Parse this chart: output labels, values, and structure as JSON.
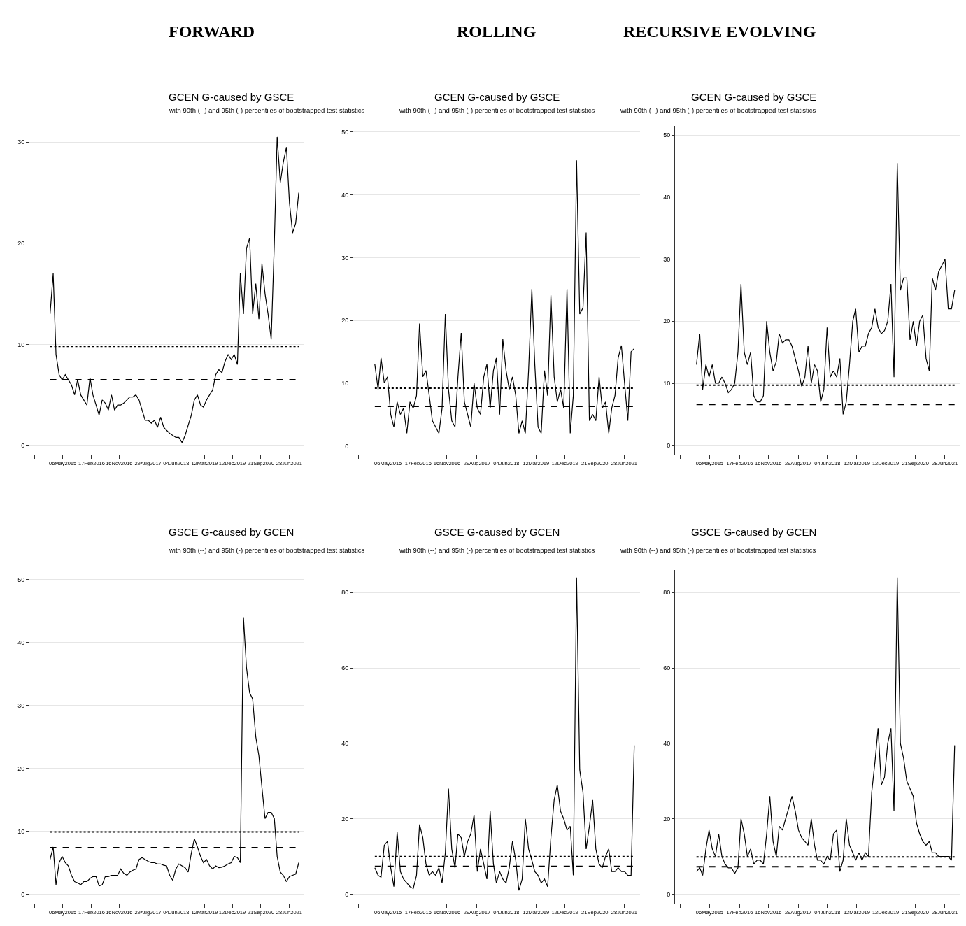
{
  "chart_data": [
    {
      "type": "line",
      "title": "GCEN G-caused by GSCE",
      "subtitle": "with 90th (--) and 95th (-) percentiles of bootstrapped test statistics",
      "annotations": [
        "FORWARD"
      ],
      "color": "#000000",
      "grid": "y",
      "x": [
        "2015-01",
        "2015-02",
        "2015-03",
        "2015-04",
        "2015-05",
        "2015-06",
        "2015-07",
        "2015-08",
        "2015-09",
        "2015-10",
        "2015-11",
        "2015-12",
        "2016-01",
        "2016-02",
        "2016-03",
        "2016-04",
        "2016-05",
        "2016-06",
        "2016-07",
        "2016-08",
        "2016-09",
        "2016-10",
        "2016-11",
        "2016-12",
        "2017-01",
        "2017-02",
        "2017-03",
        "2017-04",
        "2017-05",
        "2017-06",
        "2017-07",
        "2017-08",
        "2017-09",
        "2017-10",
        "2017-11",
        "2017-12",
        "2018-01",
        "2018-02",
        "2018-03",
        "2018-04",
        "2018-05",
        "2018-06",
        "2018-07",
        "2018-08",
        "2018-09",
        "2018-10",
        "2018-11",
        "2018-12",
        "2019-01",
        "2019-02",
        "2019-03",
        "2019-04",
        "2019-05",
        "2019-06",
        "2019-07",
        "2019-08",
        "2019-09",
        "2019-10",
        "2019-11",
        "2019-12",
        "2020-01",
        "2020-02",
        "2020-03",
        "2020-04",
        "2020-05",
        "2020-06",
        "2020-07",
        "2020-08",
        "2020-09",
        "2020-10",
        "2020-11",
        "2020-12",
        "2021-01",
        "2021-02",
        "2021-03",
        "2021-04",
        "2021-05",
        "2021-06",
        "2021-07",
        "2021-08",
        "2021-09",
        "2021-10"
      ],
      "values": [
        13,
        17,
        9,
        7,
        6.5,
        7,
        6.5,
        6,
        5,
        6.5,
        5,
        4.5,
        4,
        6.7,
        5,
        4,
        3,
        4.5,
        4.2,
        3.5,
        5,
        3.5,
        4,
        4,
        4.2,
        4.5,
        4.8,
        4.8,
        5,
        4.5,
        3.5,
        2.5,
        2.5,
        2.2,
        2.5,
        1.8,
        2.8,
        1.8,
        1.5,
        1.2,
        1,
        0.8,
        0.8,
        0.3,
        1,
        2,
        3,
        4.5,
        5,
        4,
        3.8,
        4.5,
        5,
        5.5,
        7,
        7.5,
        7.2,
        8.3,
        9,
        8.5,
        9,
        8,
        17,
        13,
        19.5,
        20.5,
        13,
        16,
        12.5,
        18,
        15,
        13,
        10.5,
        20,
        30.5,
        26,
        28,
        29.5,
        24,
        21,
        22,
        25
      ],
      "xlim": [
        "2014-06-10",
        "2021-11-25"
      ],
      "xticks": [
        {
          "value": "2014-07-29",
          "label": null
        },
        {
          "value": "2015-05-06",
          "label": "06May2015"
        },
        {
          "value": "2016-02-17",
          "label": "17Feb2016"
        },
        {
          "value": "2016-11-16",
          "label": "16Nov2016"
        },
        {
          "value": "2017-08-29",
          "label": "29Aug2017"
        },
        {
          "value": "2018-06-04",
          "label": "04Jun2018"
        },
        {
          "value": "2019-03-12",
          "label": "12Mar2019"
        },
        {
          "value": "2019-12-12",
          "label": "12Dec2019"
        },
        {
          "value": "2020-09-21",
          "label": "21Sep2020"
        },
        {
          "value": "2021-06-28",
          "label": "28Jun2021"
        }
      ],
      "ylim": [
        -0.9,
        31.6
      ],
      "yticks": [
        0,
        10,
        20,
        30
      ],
      "ref_lines": [
        {
          "axis": "y",
          "value": 9.8,
          "line_style": "dotted",
          "color": "#000000"
        },
        {
          "axis": "y",
          "value": 6.5,
          "line_style": "dashed",
          "color": "#000000"
        }
      ]
    },
    {
      "type": "line",
      "title": "GCEN G-caused by GSCE",
      "subtitle": "with 90th (--) and 95th (-) percentiles of bootstrapped test statistics",
      "annotations": [
        "ROLLING"
      ],
      "color": "#000000",
      "grid": "y",
      "x": [
        "2015-01",
        "2015-02",
        "2015-03",
        "2015-04",
        "2015-05",
        "2015-06",
        "2015-07",
        "2015-08",
        "2015-09",
        "2015-10",
        "2015-11",
        "2015-12",
        "2016-01",
        "2016-02",
        "2016-03",
        "2016-04",
        "2016-05",
        "2016-06",
        "2016-07",
        "2016-08",
        "2016-09",
        "2016-10",
        "2016-11",
        "2016-12",
        "2017-01",
        "2017-02",
        "2017-03",
        "2017-04",
        "2017-05",
        "2017-06",
        "2017-07",
        "2017-08",
        "2017-09",
        "2017-10",
        "2017-11",
        "2017-12",
        "2018-01",
        "2018-02",
        "2018-03",
        "2018-04",
        "2018-05",
        "2018-06",
        "2018-07",
        "2018-08",
        "2018-09",
        "2018-10",
        "2018-11",
        "2018-12",
        "2019-01",
        "2019-02",
        "2019-03",
        "2019-04",
        "2019-05",
        "2019-06",
        "2019-07",
        "2019-08",
        "2019-09",
        "2019-10",
        "2019-11",
        "2019-12",
        "2020-01",
        "2020-02",
        "2020-03",
        "2020-04",
        "2020-05",
        "2020-06",
        "2020-07",
        "2020-08",
        "2020-09",
        "2020-10",
        "2020-11",
        "2020-12",
        "2021-01",
        "2021-02",
        "2021-03",
        "2021-04",
        "2021-05",
        "2021-06",
        "2021-07",
        "2021-08",
        "2021-09",
        "2021-10"
      ],
      "values": [
        13,
        9,
        14,
        10,
        11,
        5,
        3,
        7,
        5,
        6,
        2,
        7,
        6,
        8,
        19.5,
        11,
        12,
        8,
        4,
        3,
        2,
        6,
        21,
        9,
        4,
        3,
        11,
        18,
        7,
        5,
        3,
        10,
        6,
        5,
        11,
        13,
        6,
        12,
        14,
        5,
        17,
        12,
        9,
        11,
        8,
        2,
        4,
        2,
        12,
        25,
        13,
        3,
        2,
        12,
        8,
        24,
        11,
        7,
        9,
        6,
        25,
        2,
        8,
        45.5,
        21,
        22,
        34,
        4,
        5,
        4,
        11,
        6,
        7,
        2,
        6,
        8,
        14,
        16,
        10,
        4,
        15,
        15.5
      ],
      "xlim": [
        "2014-06-10",
        "2021-11-25"
      ],
      "xticks": [
        {
          "value": "2014-07-29",
          "label": null
        },
        {
          "value": "2015-05-06",
          "label": "06May2015"
        },
        {
          "value": "2016-02-17",
          "label": "17Feb2016"
        },
        {
          "value": "2016-11-16",
          "label": "16Nov2016"
        },
        {
          "value": "2017-08-29",
          "label": "29Aug2017"
        },
        {
          "value": "2018-06-04",
          "label": "04Jun2018"
        },
        {
          "value": "2019-03-12",
          "label": "12Mar2019"
        },
        {
          "value": "2019-12-12",
          "label": "12Dec2019"
        },
        {
          "value": "2020-09-21",
          "label": "21Sep2020"
        },
        {
          "value": "2021-06-28",
          "label": "28Jun2021"
        }
      ],
      "ylim": [
        -1.4,
        51
      ],
      "yticks": [
        0,
        10,
        20,
        30,
        40,
        50
      ],
      "ref_lines": [
        {
          "axis": "y",
          "value": 9.2,
          "line_style": "dotted",
          "color": "#000000"
        },
        {
          "axis": "y",
          "value": 6.3,
          "line_style": "dashed",
          "color": "#000000"
        }
      ]
    },
    {
      "type": "line",
      "title": "GCEN G-caused by GSCE",
      "subtitle": "with 90th (--) and 95th (-) percentiles of bootstrapped test statistics",
      "annotations": [
        "RECURSIVE EVOLVING"
      ],
      "color": "#000000",
      "grid": "y",
      "x": [
        "2015-01",
        "2015-02",
        "2015-03",
        "2015-04",
        "2015-05",
        "2015-06",
        "2015-07",
        "2015-08",
        "2015-09",
        "2015-10",
        "2015-11",
        "2015-12",
        "2016-01",
        "2016-02",
        "2016-03",
        "2016-04",
        "2016-05",
        "2016-06",
        "2016-07",
        "2016-08",
        "2016-09",
        "2016-10",
        "2016-11",
        "2016-12",
        "2017-01",
        "2017-02",
        "2017-03",
        "2017-04",
        "2017-05",
        "2017-06",
        "2017-07",
        "2017-08",
        "2017-09",
        "2017-10",
        "2017-11",
        "2017-12",
        "2018-01",
        "2018-02",
        "2018-03",
        "2018-04",
        "2018-05",
        "2018-06",
        "2018-07",
        "2018-08",
        "2018-09",
        "2018-10",
        "2018-11",
        "2018-12",
        "2019-01",
        "2019-02",
        "2019-03",
        "2019-04",
        "2019-05",
        "2019-06",
        "2019-07",
        "2019-08",
        "2019-09",
        "2019-10",
        "2019-11",
        "2019-12",
        "2020-01",
        "2020-02",
        "2020-03",
        "2020-04",
        "2020-05",
        "2020-06",
        "2020-07",
        "2020-08",
        "2020-09",
        "2020-10",
        "2020-11",
        "2020-12",
        "2021-01",
        "2021-02",
        "2021-03",
        "2021-04",
        "2021-05",
        "2021-06",
        "2021-07",
        "2021-08",
        "2021-09",
        "2021-10"
      ],
      "values": [
        13,
        18,
        9,
        13,
        11,
        13,
        10,
        10,
        11,
        10,
        8.5,
        9,
        10,
        15,
        26,
        15,
        13,
        15,
        8,
        7,
        7,
        8,
        20,
        15,
        12,
        13.5,
        18,
        16.5,
        17,
        17,
        16,
        14,
        12,
        9.5,
        11,
        16,
        10,
        13,
        12,
        7,
        9,
        19,
        11,
        12,
        11,
        14,
        5,
        7,
        13,
        20,
        22,
        15,
        16,
        16,
        18,
        19,
        22,
        19,
        18,
        18.5,
        20,
        26,
        11,
        45.5,
        25,
        27,
        27,
        17,
        20,
        16,
        20,
        21,
        14,
        12,
        27,
        25,
        28,
        29,
        30,
        22,
        22,
        25
      ],
      "xlim": [
        "2014-06-10",
        "2021-11-25"
      ],
      "xticks": [
        {
          "value": "2014-07-29",
          "label": null
        },
        {
          "value": "2015-05-06",
          "label": "06May2015"
        },
        {
          "value": "2016-02-17",
          "label": "17Feb2016"
        },
        {
          "value": "2016-11-16",
          "label": "16Nov2016"
        },
        {
          "value": "2017-08-29",
          "label": "29Aug2017"
        },
        {
          "value": "2018-06-04",
          "label": "04Jun2018"
        },
        {
          "value": "2019-03-12",
          "label": "12Mar2019"
        },
        {
          "value": "2019-12-12",
          "label": "12Dec2019"
        },
        {
          "value": "2020-09-21",
          "label": "21Sep2020"
        },
        {
          "value": "2021-06-28",
          "label": "28Jun2021"
        }
      ],
      "ylim": [
        -1.5,
        51.5
      ],
      "yticks": [
        0,
        10,
        20,
        30,
        40,
        50
      ],
      "ref_lines": [
        {
          "axis": "y",
          "value": 9.7,
          "line_style": "dotted",
          "color": "#000000"
        },
        {
          "axis": "y",
          "value": 6.6,
          "line_style": "dashed",
          "color": "#000000"
        }
      ]
    },
    {
      "type": "line",
      "title": "GSCE G-caused by GCEN",
      "subtitle": "with 90th (--) and 95th (-) percentiles of bootstrapped test statistics",
      "color": "#000000",
      "grid": "y",
      "x": [
        "2015-01",
        "2015-02",
        "2015-03",
        "2015-04",
        "2015-05",
        "2015-06",
        "2015-07",
        "2015-08",
        "2015-09",
        "2015-10",
        "2015-11",
        "2015-12",
        "2016-01",
        "2016-02",
        "2016-03",
        "2016-04",
        "2016-05",
        "2016-06",
        "2016-07",
        "2016-08",
        "2016-09",
        "2016-10",
        "2016-11",
        "2016-12",
        "2017-01",
        "2017-02",
        "2017-03",
        "2017-04",
        "2017-05",
        "2017-06",
        "2017-07",
        "2017-08",
        "2017-09",
        "2017-10",
        "2017-11",
        "2017-12",
        "2018-01",
        "2018-02",
        "2018-03",
        "2018-04",
        "2018-05",
        "2018-06",
        "2018-07",
        "2018-08",
        "2018-09",
        "2018-10",
        "2018-11",
        "2018-12",
        "2019-01",
        "2019-02",
        "2019-03",
        "2019-04",
        "2019-05",
        "2019-06",
        "2019-07",
        "2019-08",
        "2019-09",
        "2019-10",
        "2019-11",
        "2019-12",
        "2020-01",
        "2020-02",
        "2020-03",
        "2020-04",
        "2020-05",
        "2020-06",
        "2020-07",
        "2020-08",
        "2020-09",
        "2020-10",
        "2020-11",
        "2020-12",
        "2021-01",
        "2021-02",
        "2021-03",
        "2021-04",
        "2021-05",
        "2021-06",
        "2021-07",
        "2021-08",
        "2021-09",
        "2021-10"
      ],
      "values": [
        5.5,
        7.5,
        1.5,
        5,
        6,
        5,
        4.5,
        3,
        2,
        1.8,
        1.5,
        2,
        2,
        2.5,
        2.8,
        2.8,
        1.3,
        1.5,
        2.8,
        2.8,
        3,
        3,
        3,
        4,
        3.3,
        3,
        3.5,
        3.8,
        4,
        5.5,
        5.8,
        5.5,
        5.2,
        5,
        5,
        4.8,
        4.8,
        4.6,
        4.5,
        3,
        2.2,
        4,
        4.8,
        4.5,
        4.2,
        3.5,
        6.5,
        8.8,
        7.5,
        6,
        5,
        5.5,
        4.5,
        4,
        4.5,
        4.2,
        4.3,
        4.5,
        4.8,
        5,
        6,
        5.8,
        5,
        44,
        36,
        32,
        31,
        25,
        22,
        17,
        12,
        13,
        13,
        12,
        6,
        3.5,
        3,
        2,
        2.8,
        3,
        3.2,
        5
      ],
      "xlim": [
        "2014-06-10",
        "2021-11-25"
      ],
      "xticks": [
        {
          "value": "2014-07-29",
          "label": null
        },
        {
          "value": "2015-05-06",
          "label": "06May2015"
        },
        {
          "value": "2016-02-17",
          "label": "17Feb2016"
        },
        {
          "value": "2016-11-16",
          "label": "16Nov2016"
        },
        {
          "value": "2017-08-29",
          "label": "29Aug2017"
        },
        {
          "value": "2018-06-04",
          "label": "04Jun2018"
        },
        {
          "value": "2019-03-12",
          "label": "12Mar2019"
        },
        {
          "value": "2019-12-12",
          "label": "12Dec2019"
        },
        {
          "value": "2020-09-21",
          "label": "21Sep2020"
        },
        {
          "value": "2021-06-28",
          "label": "28Jun2021"
        }
      ],
      "ylim": [
        -1.5,
        51.5
      ],
      "yticks": [
        0,
        10,
        20,
        30,
        40,
        50
      ],
      "ref_lines": [
        {
          "axis": "y",
          "value": 9.9,
          "line_style": "dotted",
          "color": "#000000"
        },
        {
          "axis": "y",
          "value": 7.4,
          "line_style": "dashed",
          "color": "#000000"
        }
      ]
    },
    {
      "type": "line",
      "title": "GSCE G-caused by GCEN",
      "subtitle": "with 90th (--) and 95th (-) percentiles of bootstrapped test statistics",
      "color": "#000000",
      "grid": "y",
      "x": [
        "2015-01",
        "2015-02",
        "2015-03",
        "2015-04",
        "2015-05",
        "2015-06",
        "2015-07",
        "2015-08",
        "2015-09",
        "2015-10",
        "2015-11",
        "2015-12",
        "2016-01",
        "2016-02",
        "2016-03",
        "2016-04",
        "2016-05",
        "2016-06",
        "2016-07",
        "2016-08",
        "2016-09",
        "2016-10",
        "2016-11",
        "2016-12",
        "2017-01",
        "2017-02",
        "2017-03",
        "2017-04",
        "2017-05",
        "2017-06",
        "2017-07",
        "2017-08",
        "2017-09",
        "2017-10",
        "2017-11",
        "2017-12",
        "2018-01",
        "2018-02",
        "2018-03",
        "2018-04",
        "2018-05",
        "2018-06",
        "2018-07",
        "2018-08",
        "2018-09",
        "2018-10",
        "2018-11",
        "2018-12",
        "2019-01",
        "2019-02",
        "2019-03",
        "2019-04",
        "2019-05",
        "2019-06",
        "2019-07",
        "2019-08",
        "2019-09",
        "2019-10",
        "2019-11",
        "2019-12",
        "2020-01",
        "2020-02",
        "2020-03",
        "2020-04",
        "2020-05",
        "2020-06",
        "2020-07",
        "2020-08",
        "2020-09",
        "2020-10",
        "2020-11",
        "2020-12",
        "2021-01",
        "2021-02",
        "2021-03",
        "2021-04",
        "2021-05",
        "2021-06",
        "2021-07",
        "2021-08",
        "2021-09",
        "2021-10"
      ],
      "values": [
        7,
        5,
        4.5,
        13,
        14,
        7,
        2,
        16.5,
        6,
        4,
        3,
        2,
        1.5,
        5,
        18.5,
        15,
        8,
        5,
        6,
        5,
        7,
        3,
        11,
        28,
        12,
        7,
        16,
        15,
        10,
        14,
        16,
        21,
        6,
        12,
        8,
        4,
        22,
        8,
        3,
        6,
        4,
        3,
        7,
        14,
        9,
        1,
        4,
        20,
        12,
        9,
        6,
        5,
        3,
        4,
        2,
        15,
        25,
        29,
        22,
        20,
        17,
        18,
        5,
        84,
        33,
        27,
        12,
        18,
        25,
        12,
        8,
        7,
        10,
        12,
        6,
        6,
        7,
        6,
        6,
        5,
        5,
        39.5
      ],
      "xlim": [
        "2014-06-10",
        "2021-11-25"
      ],
      "xticks": [
        {
          "value": "2014-07-29",
          "label": null
        },
        {
          "value": "2015-05-06",
          "label": "06May2015"
        },
        {
          "value": "2016-02-17",
          "label": "17Feb2016"
        },
        {
          "value": "2016-11-16",
          "label": "16Nov2016"
        },
        {
          "value": "2017-08-29",
          "label": "29Aug2017"
        },
        {
          "value": "2018-06-04",
          "label": "04Jun2018"
        },
        {
          "value": "2019-03-12",
          "label": "12Mar2019"
        },
        {
          "value": "2019-12-12",
          "label": "12Dec2019"
        },
        {
          "value": "2020-09-21",
          "label": "21Sep2020"
        },
        {
          "value": "2021-06-28",
          "label": "28Jun2021"
        }
      ],
      "ylim": [
        -2.5,
        86
      ],
      "yticks": [
        0,
        20,
        40,
        60,
        80
      ],
      "ref_lines": [
        {
          "axis": "y",
          "value": 10,
          "line_style": "dotted",
          "color": "#000000"
        },
        {
          "axis": "y",
          "value": 7.4,
          "line_style": "dashed",
          "color": "#000000"
        }
      ]
    },
    {
      "type": "line",
      "title": "GSCE G-caused by GCEN",
      "subtitle": "with 90th (--) and 95th (-) percentiles of bootstrapped test statistics",
      "color": "#000000",
      "grid": "y",
      "x": [
        "2015-01",
        "2015-02",
        "2015-03",
        "2015-04",
        "2015-05",
        "2015-06",
        "2015-07",
        "2015-08",
        "2015-09",
        "2015-10",
        "2015-11",
        "2015-12",
        "2016-01",
        "2016-02",
        "2016-03",
        "2016-04",
        "2016-05",
        "2016-06",
        "2016-07",
        "2016-08",
        "2016-09",
        "2016-10",
        "2016-11",
        "2016-12",
        "2017-01",
        "2017-02",
        "2017-03",
        "2017-04",
        "2017-05",
        "2017-06",
        "2017-07",
        "2017-08",
        "2017-09",
        "2017-10",
        "2017-11",
        "2017-12",
        "2018-01",
        "2018-02",
        "2018-03",
        "2018-04",
        "2018-05",
        "2018-06",
        "2018-07",
        "2018-08",
        "2018-09",
        "2018-10",
        "2018-11",
        "2018-12",
        "2019-01",
        "2019-02",
        "2019-03",
        "2019-04",
        "2019-05",
        "2019-06",
        "2019-07",
        "2019-08",
        "2019-09",
        "2019-10",
        "2019-11",
        "2019-12",
        "2020-01",
        "2020-02",
        "2020-03",
        "2020-04",
        "2020-05",
        "2020-06",
        "2020-07",
        "2020-08",
        "2020-09",
        "2020-10",
        "2020-11",
        "2020-12",
        "2021-01",
        "2021-02",
        "2021-03",
        "2021-04",
        "2021-05",
        "2021-06",
        "2021-07",
        "2021-08",
        "2021-09",
        "2021-10"
      ],
      "values": [
        6,
        7,
        5,
        12,
        17,
        12,
        10,
        16,
        10,
        8,
        7,
        7,
        5.5,
        7,
        20,
        16,
        10,
        12,
        8,
        9,
        9,
        8,
        16,
        26,
        14,
        10,
        18,
        17,
        20,
        23,
        26,
        22,
        17,
        15,
        14,
        13,
        20,
        13,
        9,
        9,
        8,
        10,
        9,
        16,
        17,
        6,
        9,
        20,
        13,
        11,
        9,
        11,
        9,
        11,
        10,
        27,
        35,
        44,
        29,
        31,
        40,
        44,
        22,
        84,
        40,
        36,
        30,
        28,
        26,
        19,
        16,
        14,
        13,
        14,
        11,
        11,
        10,
        10,
        10,
        10,
        9,
        39.5
      ],
      "xlim": [
        "2014-06-10",
        "2021-11-25"
      ],
      "xticks": [
        {
          "value": "2014-07-29",
          "label": null
        },
        {
          "value": "2015-05-06",
          "label": "06May2015"
        },
        {
          "value": "2016-02-17",
          "label": "17Feb2016"
        },
        {
          "value": "2016-11-16",
          "label": "16Nov2016"
        },
        {
          "value": "2017-08-29",
          "label": "29Aug2017"
        },
        {
          "value": "2018-06-04",
          "label": "04Jun2018"
        },
        {
          "value": "2019-03-12",
          "label": "12Mar2019"
        },
        {
          "value": "2019-12-12",
          "label": "12Dec2019"
        },
        {
          "value": "2020-09-21",
          "label": "21Sep2020"
        },
        {
          "value": "2021-06-28",
          "label": "28Jun2021"
        }
      ],
      "ylim": [
        -2.5,
        86
      ],
      "yticks": [
        0,
        20,
        40,
        60,
        80
      ],
      "ref_lines": [
        {
          "axis": "y",
          "value": 9.9,
          "line_style": "dotted",
          "color": "#000000"
        },
        {
          "axis": "y",
          "value": 7.3,
          "line_style": "dashed",
          "color": "#000000"
        }
      ]
    }
  ]
}
